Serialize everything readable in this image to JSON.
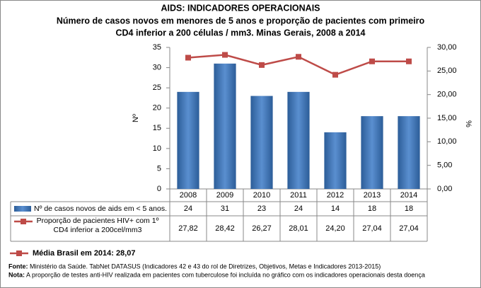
{
  "chart_data": {
    "type": "bar_line",
    "title": "AIDS: INDICADORES OPERACIONAIS",
    "subtitle": [
      "Número de casos novos em menores de 5 anos e proporção de pacientes com primeiro",
      "CD4 inferior a 200 células / mm3. Minas Gerais, 2008 a 2014"
    ],
    "y_label": "Nº",
    "y2_label": "%",
    "categories": [
      "2008",
      "2009",
      "2010",
      "2011",
      "2012",
      "2013",
      "2014"
    ],
    "series": [
      {
        "name": "Nº de casos novos de aids em < 5 anos.",
        "type": "bar",
        "color": "#4a7ebb",
        "values": [
          24,
          31,
          23,
          24,
          14,
          18,
          18
        ]
      },
      {
        "name": "Proporção de pacientes HIV+ com 1º CD4 inferior a 200cel/mm3",
        "type": "line",
        "axis": "y2",
        "color": "#be4b48",
        "values": [
          27.82,
          28.42,
          26.27,
          28.01,
          24.2,
          27.04,
          27.04
        ],
        "value_labels": [
          "27,82",
          "28,42",
          "26,27",
          "28,01",
          "24,20",
          "27,04",
          "27,04"
        ]
      }
    ],
    "ylim": [
      0,
      35
    ],
    "yticks": [
      0,
      5,
      10,
      15,
      20,
      25,
      30,
      35
    ],
    "y2lim": [
      0,
      30
    ],
    "y2ticks": [
      {
        "value": 0,
        "label": "0,00"
      },
      {
        "value": 5,
        "label": "5,00"
      },
      {
        "value": 10,
        "label": "10,00"
      },
      {
        "value": 15,
        "label": "15,00"
      },
      {
        "value": 20,
        "label": "20,00"
      },
      {
        "value": 25,
        "label": "25,00"
      },
      {
        "value": 30,
        "label": "30,00"
      }
    ],
    "annotation": "Média Brasil em 2014: 28,07",
    "source_label": "Fonte:",
    "source": "Ministério da Saúde. TabNet DATASUS (Indicadores 42 e 43 do rol de Diretrizes, Objetivos, Metas e Indicadores 2013-2015)",
    "note_label": "Nota:",
    "note": "A proporção de testes anti-HIV realizada em pacientes com tuberculose foi incluída no gráfico com os indicadores operacionais desta doença"
  }
}
